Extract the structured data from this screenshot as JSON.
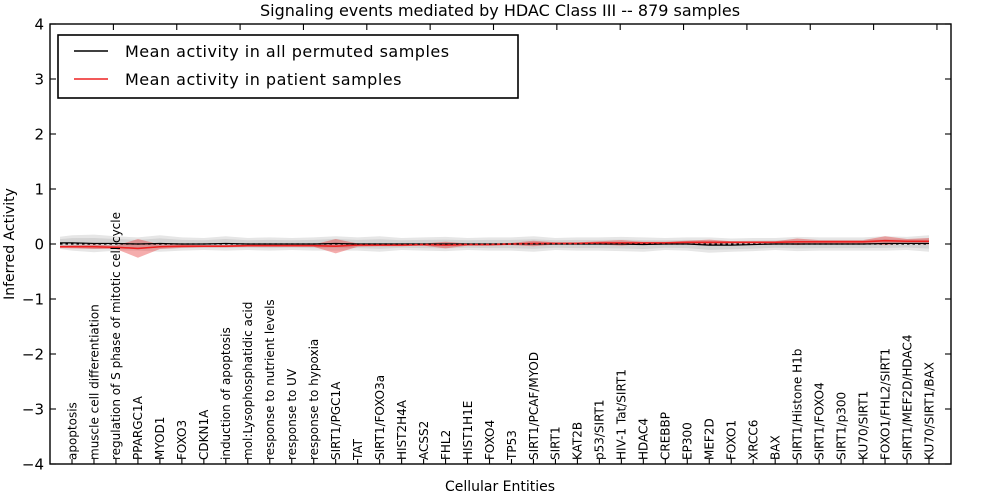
{
  "header": {
    "title": "Signaling events mediated by HDAC Class III -- 879 samples"
  },
  "colors": {
    "permuted_line": "#000000",
    "patient_line": "#ee2222",
    "permuted_band_outer": "#e6e6e6",
    "permuted_band_inner": "#d3d3d3",
    "patient_band": "rgba(230,50,50,0.40)",
    "zero_line": "#000000"
  },
  "chart_data": {
    "type": "line",
    "title": "Signaling events mediated by HDAC Class III -- 879 samples",
    "xlabel": "Cellular Entities",
    "ylabel": "Inferred Activity",
    "ylim": [
      -4,
      4
    ],
    "yticks": [
      -4,
      -3,
      -2,
      -1,
      0,
      1,
      2,
      3,
      4
    ],
    "grid": false,
    "zero_line_style": "dotted",
    "legend_position": "upper left",
    "categories": [
      "apoptosis",
      "muscle cell differentiation",
      "regulation of S phase of mitotic cell cycle",
      "PPARGC1A",
      "MYOD1",
      "FOXO3",
      "CDKN1A",
      "induction of apoptosis",
      "mol:Lysophosphatidic acid",
      "response to nutrient levels",
      "response to UV",
      "response to hypoxia",
      "SIRT1/PGC1A",
      "TAT",
      "SIRT1/FOXO3a",
      "HIST2H4A",
      "ACSS2",
      "FHL2",
      "HIST1H1E",
      "FOXO4",
      "TP53",
      "SIRT1/PCAF/MYOD",
      "SIRT1",
      "KAT2B",
      "p53/SIRT1",
      "HIV-1 Tat/SIRT1",
      "HDAC4",
      "CREBBP",
      "EP300",
      "MEF2D",
      "FOXO1",
      "XRCC6",
      "BAX",
      "SIRT1/Histone H1b",
      "SIRT1/FOXO4",
      "SIRT1/p300",
      "KU70/SIRT1",
      "FOXO1/FHL2/SIRT1",
      "SIRT1/MEF2D/HDAC4",
      "KU70/SIRT1/BAX"
    ],
    "series": [
      {
        "name": "Mean activity in all permuted samples",
        "color": "#000000",
        "values": [
          0.02,
          0.01,
          0.01,
          0.0,
          0.01,
          0.0,
          0.0,
          0.01,
          0.0,
          0.0,
          0.0,
          0.0,
          0.01,
          0.0,
          0.0,
          0.0,
          0.0,
          0.0,
          0.0,
          0.0,
          0.0,
          0.0,
          0.0,
          0.0,
          0.0,
          0.0,
          -0.01,
          0.0,
          0.0,
          -0.02,
          -0.02,
          -0.01,
          0.0,
          0.0,
          0.0,
          0.0,
          0.0,
          0.01,
          0.01,
          0.01
        ],
        "band_halfwidth": [
          0.14,
          0.16,
          0.13,
          0.12,
          0.15,
          0.12,
          0.11,
          0.13,
          0.11,
          0.12,
          0.11,
          0.12,
          0.13,
          0.12,
          0.14,
          0.11,
          0.12,
          0.13,
          0.11,
          0.12,
          0.12,
          0.14,
          0.11,
          0.12,
          0.12,
          0.13,
          0.13,
          0.11,
          0.12,
          0.14,
          0.12,
          0.12,
          0.11,
          0.13,
          0.12,
          0.12,
          0.12,
          0.13,
          0.12,
          0.15
        ]
      },
      {
        "name": "Mean activity in patient samples",
        "color": "#ee2222",
        "values": [
          -0.05,
          -0.05,
          -0.06,
          -0.08,
          -0.05,
          -0.04,
          -0.04,
          -0.04,
          -0.03,
          -0.03,
          -0.03,
          -0.03,
          -0.04,
          -0.02,
          -0.02,
          -0.02,
          -0.01,
          -0.02,
          -0.01,
          -0.01,
          0.0,
          0.01,
          0.01,
          0.01,
          0.02,
          0.02,
          0.02,
          0.02,
          0.03,
          0.03,
          0.03,
          0.03,
          0.03,
          0.04,
          0.04,
          0.04,
          0.04,
          0.06,
          0.05,
          0.05
        ],
        "band_halfwidth": [
          0.03,
          0.04,
          0.03,
          0.17,
          0.04,
          0.03,
          0.02,
          0.02,
          0.02,
          0.02,
          0.02,
          0.02,
          0.13,
          0.03,
          0.02,
          0.02,
          0.02,
          0.06,
          0.02,
          0.02,
          0.02,
          0.05,
          0.02,
          0.02,
          0.03,
          0.05,
          0.02,
          0.02,
          0.03,
          0.05,
          0.02,
          0.02,
          0.02,
          0.06,
          0.03,
          0.03,
          0.03,
          0.08,
          0.04,
          0.06
        ]
      }
    ]
  }
}
